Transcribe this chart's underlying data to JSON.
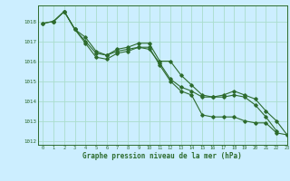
{
  "xlabel": "Graphe pression niveau de la mer (hPa)",
  "background_color": "#cceeff",
  "grid_color": "#aaddcc",
  "line_color": "#2d6b2d",
  "xlim": [
    -0.5,
    23
  ],
  "ylim": [
    1011.8,
    1018.8
  ],
  "yticks": [
    1012,
    1013,
    1014,
    1015,
    1016,
    1017,
    1018
  ],
  "xticks": [
    0,
    1,
    2,
    3,
    4,
    5,
    6,
    7,
    8,
    9,
    10,
    11,
    12,
    13,
    14,
    15,
    16,
    17,
    18,
    19,
    20,
    21,
    22,
    23
  ],
  "s1_x": [
    0,
    1,
    2,
    3,
    4,
    5,
    6,
    7,
    8,
    9,
    10,
    11,
    12,
    13,
    14,
    15,
    16,
    17,
    18,
    19,
    20,
    21,
    22
  ],
  "s1_y": [
    1017.9,
    1018.0,
    1018.5,
    1017.6,
    1017.0,
    1016.4,
    1016.3,
    1016.5,
    1016.6,
    1016.7,
    1016.6,
    1015.9,
    1015.1,
    1014.7,
    1014.5,
    1014.2,
    1014.2,
    1014.2,
    1014.3,
    1014.2,
    1013.8,
    1013.2,
    1012.5
  ],
  "s2_x": [
    0,
    1,
    2,
    3,
    4,
    5,
    6,
    7,
    8,
    9,
    10,
    11,
    12,
    13,
    14,
    15,
    16,
    17,
    18,
    19,
    20,
    21,
    22,
    23
  ],
  "s2_y": [
    1017.9,
    1018.0,
    1018.5,
    1017.6,
    1017.2,
    1016.5,
    1016.3,
    1016.6,
    1016.7,
    1016.9,
    1016.9,
    1016.0,
    1016.0,
    1015.3,
    1014.8,
    1014.3,
    1014.2,
    1014.3,
    1014.5,
    1014.3,
    1014.1,
    1013.5,
    1013.0,
    1012.3
  ],
  "s3_x": [
    1,
    2,
    3,
    4,
    5,
    6,
    7,
    8,
    9,
    10,
    11,
    12,
    13,
    14,
    15,
    16,
    17,
    18,
    19,
    20,
    21,
    22,
    23
  ],
  "s3_y": [
    1018.0,
    1018.5,
    1017.6,
    1016.9,
    1016.2,
    1016.1,
    1016.4,
    1016.5,
    1016.7,
    1016.7,
    1015.8,
    1015.0,
    1014.5,
    1014.3,
    1013.3,
    1013.2,
    1013.2,
    1013.2,
    1013.0,
    1012.9,
    1012.9,
    1012.4,
    1012.3
  ]
}
